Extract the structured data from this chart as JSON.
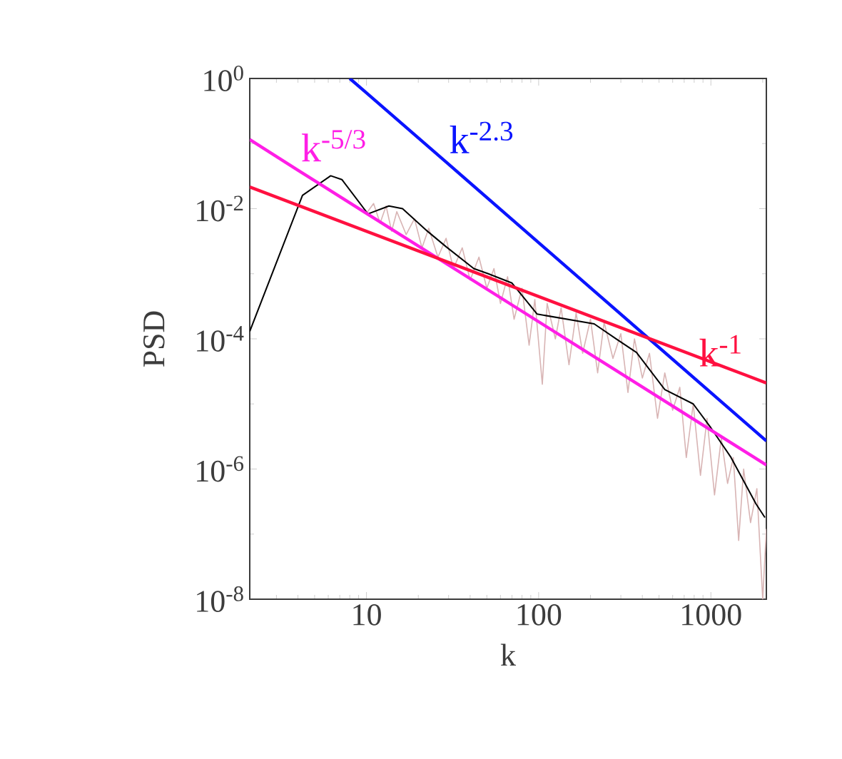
{
  "chart_data": {
    "type": "line",
    "xlabel": "k",
    "ylabel": "PSD",
    "log": "xy",
    "xlim": [
      2.1,
      2100
    ],
    "ylim": [
      1e-08,
      1
    ],
    "xticks": [
      10,
      100,
      1000
    ],
    "yticks": [
      {
        "value": 1e-08,
        "label": "10$^{-8}$"
      },
      {
        "value": 1e-06,
        "label": "10$^{-6}$"
      },
      {
        "value": 0.0001,
        "label": "10$^{-4}$"
      },
      {
        "value": 0.01,
        "label": "10$^{-2}$"
      },
      {
        "value": 1,
        "label": "10$^{0}$"
      }
    ],
    "grid": false,
    "marker": "none",
    "line_style": "solid",
    "series": [
      {
        "color": "#d8b4b4",
        "x": [
          10,
          11,
          12,
          13,
          14,
          15,
          17,
          19,
          21,
          23,
          26,
          29,
          32,
          36,
          40,
          45,
          50,
          55,
          60,
          66,
          72,
          80,
          88,
          95,
          105,
          112,
          125,
          135,
          150,
          165,
          180,
          200,
          220,
          240,
          270,
          300,
          330,
          360,
          400,
          440,
          490,
          540,
          600,
          660,
          720,
          790,
          870,
          950,
          1050,
          1150,
          1250,
          1350,
          1450,
          1550,
          1700,
          1850,
          2000,
          2100
        ],
        "values": [
          0.0085,
          0.012,
          0.006,
          0.011,
          0.0045,
          0.009,
          0.004,
          0.007,
          0.0025,
          0.005,
          0.0018,
          0.0035,
          0.0012,
          0.0025,
          0.0008,
          0.0018,
          0.0006,
          0.0012,
          0.00035,
          0.0009,
          0.0002,
          0.0006,
          8e-05,
          0.0004,
          2e-05,
          0.00035,
          0.0001,
          0.0003,
          4e-05,
          0.00025,
          6e-05,
          0.0002,
          3e-05,
          0.00018,
          5e-05,
          0.00012,
          1.5e-05,
          0.0001,
          2.5e-05,
          6e-05,
          6e-06,
          3e-05,
          8e-06,
          1.8e-05,
          1.5e-06,
          1e-05,
          8e-07,
          6e-06,
          4e-07,
          3e-06,
          6e-07,
          1.5e-06,
          8e-08,
          1e-06,
          1.5e-07,
          5e-07,
          1e-08,
          1.2e-07
        ]
      },
      {
        "color": "#000000",
        "x": [
          2.1,
          4.25,
          6.2,
          7.2,
          10.2,
          13.5,
          16.2,
          22.6,
          29,
          42,
          51,
          70,
          98,
          210,
          285,
          370,
          540,
          790,
          1000,
          1310,
          1830,
          2060
        ],
        "values": [
          0.00013,
          0.016,
          0.032,
          0.028,
          0.0083,
          0.011,
          0.01,
          0.0045,
          0.0026,
          0.0012,
          0.001,
          0.00072,
          0.00024,
          0.00017,
          9.77e-05,
          6.17e-05,
          1.66e-05,
          1e-05,
          4.3e-06,
          1.5e-06,
          2.9e-07,
          1.8e-07
        ]
      },
      {
        "name": "k$^{-2.3}$",
        "color": "#0a14ff",
        "x": [
          8,
          29,
          2100
        ],
        "values": [
          1,
          0.052,
          2.7e-06
        ]
      },
      {
        "name": "k$^{-5/3}$",
        "color": "#ff1ee6",
        "x": [
          2.1,
          4,
          2100
        ],
        "values": [
          0.115,
          0.039,
          1.15e-06
        ]
      },
      {
        "name": "k$^{-1}$",
        "color": "#ff1040",
        "x": [
          2.1,
          1600,
          2100
        ],
        "values": [
          0.0215,
          2.76e-05,
          2.1e-05
        ]
      }
    ]
  }
}
